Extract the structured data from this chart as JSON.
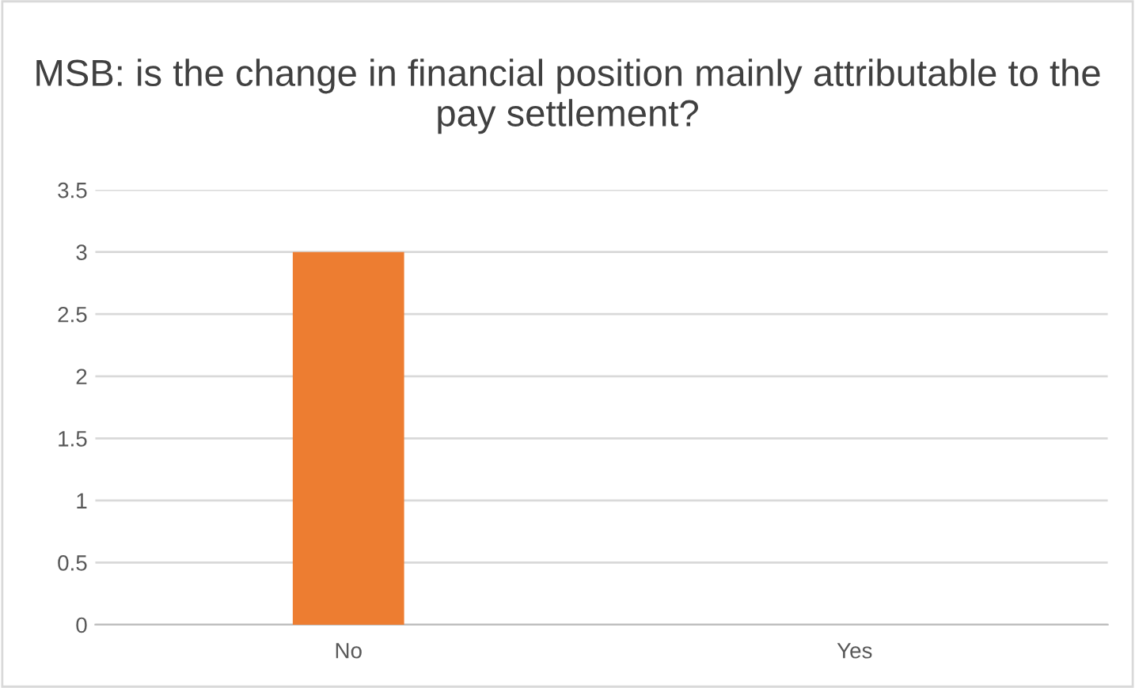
{
  "chart_data": {
    "type": "bar",
    "title": "MSB: is the change in financial position mainly attributable to the pay settlement?",
    "categories": [
      "No",
      "Yes"
    ],
    "values": [
      3,
      0
    ],
    "color": "#ed7d31",
    "ylim": [
      0,
      3.5
    ],
    "yticks": [
      0,
      0.5,
      1,
      1.5,
      2,
      2.5,
      3,
      3.5
    ],
    "grid": "y",
    "legend": false
  }
}
